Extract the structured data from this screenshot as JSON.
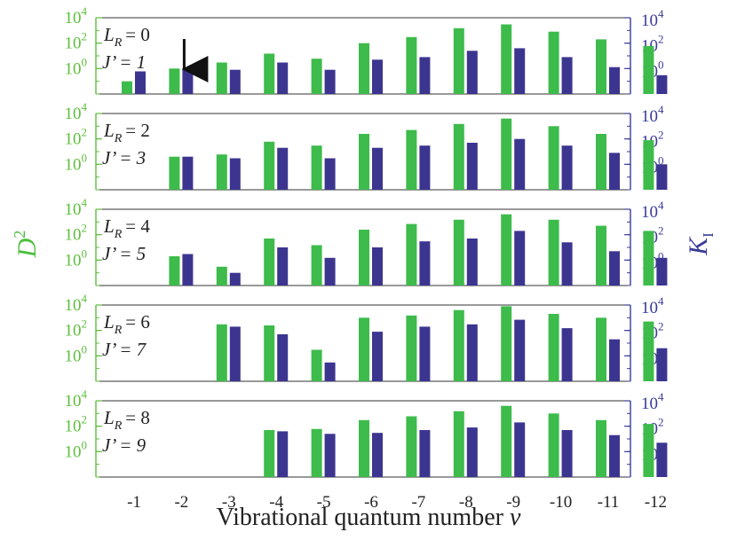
{
  "chart_data": {
    "type": "bar",
    "scale": "log",
    "ylim": [
      0.01,
      10000
    ],
    "y_tick_values": [
      1,
      100,
      10000
    ],
    "y_tick_labels": [
      {
        "base": "10",
        "exp": "0"
      },
      {
        "base": "10",
        "exp": "2"
      },
      {
        "base": "10",
        "exp": "4"
      }
    ],
    "xlabel": "Vibrational quantum number",
    "xlabel_symbol": "v",
    "ylabel_left": {
      "base": "D",
      "sup": "2"
    },
    "ylabel_right": {
      "base": "K",
      "sub": "I"
    },
    "categories": [
      "-1",
      "-2",
      "-3",
      "-4",
      "-5",
      "-6",
      "-7",
      "-8",
      "-9",
      "-10",
      "-11",
      "-12"
    ],
    "colors": {
      "D2": "#3dbb4b",
      "K": "#3c3590",
      "left_axis": "#5cbf3a",
      "right_axis": "#3a3a9a",
      "frame": "#333333",
      "arrow": "#111111"
    },
    "arrow_category": "-2",
    "panels": [
      {
        "lr_label": "L",
        "lr_sub": "R",
        "lr_value": "= 0",
        "j_label": "J’ = 1",
        "series": [
          {
            "key": "D2",
            "values": [
              0.1,
              1,
              3,
              15,
              6,
              100,
              300,
              1500,
              3000,
              800,
              200,
              60
            ]
          },
          {
            "key": "K",
            "values": [
              0.6,
              1,
              0.8,
              3,
              0.8,
              5,
              8,
              25,
              40,
              8,
              1.3,
              0.3
            ]
          }
        ]
      },
      {
        "lr_label": "L",
        "lr_sub": "R",
        "lr_value": "= 2",
        "j_label": "J’ = 3",
        "series": [
          {
            "key": "D2",
            "values": [
              null,
              4,
              6,
              60,
              30,
              250,
              500,
              1500,
              4000,
              1000,
              250,
              80
            ]
          },
          {
            "key": "K",
            "values": [
              null,
              4,
              3,
              20,
              3,
              20,
              30,
              50,
              100,
              30,
              8,
              1
            ]
          }
        ]
      },
      {
        "lr_label": "L",
        "lr_sub": "R",
        "lr_value": "= 4",
        "j_label": "J’ = 5",
        "series": [
          {
            "key": "D2",
            "values": [
              null,
              2,
              0.3,
              50,
              15,
              250,
              700,
              1500,
              4000,
              1500,
              500,
              200
            ]
          },
          {
            "key": "K",
            "values": [
              null,
              3,
              0.1,
              10,
              1.5,
              10,
              30,
              50,
              200,
              25,
              5,
              1.5
            ]
          }
        ]
      },
      {
        "lr_label": "L",
        "lr_sub": "R",
        "lr_value": "= 6",
        "j_label": "J’ = 7",
        "series": [
          {
            "key": "D2",
            "values": [
              null,
              null,
              300,
              250,
              3,
              1000,
              1500,
              4000,
              8000,
              2000,
              1000,
              500
            ]
          },
          {
            "key": "K",
            "values": [
              null,
              null,
              200,
              50,
              0.3,
              80,
              200,
              300,
              700,
              150,
              20,
              4
            ]
          }
        ]
      },
      {
        "lr_label": "L",
        "lr_sub": "R",
        "lr_value": "= 8",
        "j_label": "J’ = 9",
        "series": [
          {
            "key": "D2",
            "values": [
              null,
              null,
              null,
              50,
              60,
              300,
              600,
              1500,
              4000,
              1000,
              300,
              150
            ]
          },
          {
            "key": "K",
            "values": [
              null,
              null,
              null,
              40,
              25,
              30,
              50,
              80,
              200,
              50,
              20,
              5
            ]
          }
        ]
      }
    ]
  }
}
